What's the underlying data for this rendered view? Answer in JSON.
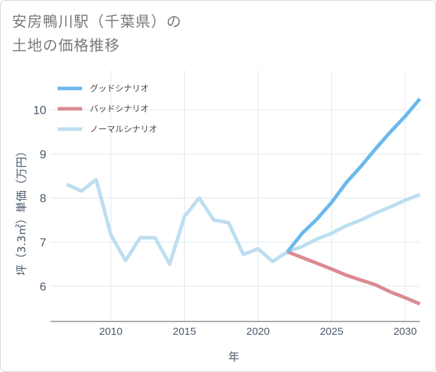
{
  "title": {
    "line1": "安房鴨川駅（千葉県）の",
    "line2": "土地の価格推移"
  },
  "colors": {
    "good": "#6bb8ec",
    "bad": "#dc8a93",
    "normal": "#bcdef0",
    "grid": "#dde8f0",
    "axis": "#555555"
  },
  "chart_data": {
    "type": "line",
    "xlabel": "年",
    "ylabel": "坪（3.3㎡）単価（万円）",
    "xlim": [
      2005.9,
      2031
    ],
    "ylim": [
      5.2,
      10.9
    ],
    "xticks": [
      2010,
      2015,
      2020,
      2025,
      2030
    ],
    "yticks": [
      6,
      7,
      8,
      9,
      10
    ],
    "legend_position": "top-left",
    "series": [
      {
        "name": "グッドシナリオ",
        "key": "good",
        "x": [
          2022,
          2023,
          2024,
          2025,
          2026,
          2027,
          2028,
          2029,
          2030,
          2031
        ],
        "y": [
          6.78,
          7.2,
          7.52,
          7.9,
          8.35,
          8.72,
          9.12,
          9.5,
          9.85,
          10.25
        ]
      },
      {
        "name": "バッドシナリオ",
        "key": "bad",
        "x": [
          2022,
          2023,
          2024,
          2025,
          2026,
          2027,
          2028,
          2029,
          2030,
          2031
        ],
        "y": [
          6.78,
          6.65,
          6.52,
          6.39,
          6.25,
          6.14,
          6.03,
          5.87,
          5.74,
          5.6
        ]
      },
      {
        "name": "ノーマルシナリオ",
        "key": "normal",
        "x": [
          2007,
          2008,
          2009,
          2010,
          2011,
          2012,
          2013,
          2014,
          2015,
          2016,
          2017,
          2018,
          2019,
          2020,
          2021,
          2022,
          2023,
          2024,
          2025,
          2026,
          2027,
          2028,
          2029,
          2030,
          2031
        ],
        "y": [
          8.31,
          8.16,
          8.42,
          7.17,
          6.58,
          7.1,
          7.1,
          6.5,
          7.58,
          8.0,
          7.5,
          7.44,
          6.72,
          6.85,
          6.56,
          6.78,
          6.9,
          7.07,
          7.2,
          7.37,
          7.5,
          7.66,
          7.8,
          7.95,
          8.08
        ]
      }
    ]
  }
}
